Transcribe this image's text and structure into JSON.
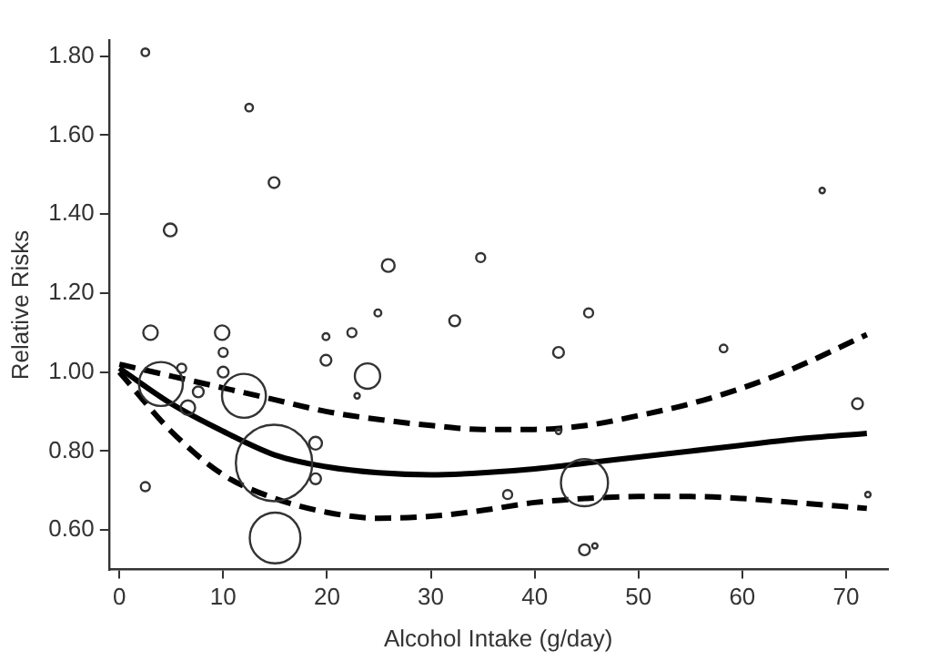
{
  "chart_data": {
    "type": "bubble",
    "xlabel": "Alcohol Intake (g/day)",
    "ylabel": "Relative Risks",
    "xlim": [
      -1,
      74
    ],
    "ylim": [
      0.5,
      1.84
    ],
    "xticks": [
      0,
      10,
      20,
      30,
      40,
      50,
      60,
      70
    ],
    "yticks": [
      {
        "value": 0.6,
        "label": "0.60"
      },
      {
        "value": 0.8,
        "label": "0.80"
      },
      {
        "value": 1.0,
        "label": "1.00"
      },
      {
        "value": 1.2,
        "label": "1.20"
      },
      {
        "value": 1.4,
        "label": "1.40"
      },
      {
        "value": 1.6,
        "label": "1.60"
      },
      {
        "value": 1.8,
        "label": "1.80"
      }
    ],
    "grid": false,
    "legend": false,
    "series": [
      {
        "color": "#333333",
        "x": [
          2.5,
          12.5,
          14.9,
          4.9,
          24.9,
          25.9,
          32.3,
          67.7,
          34.8,
          45.2,
          3,
          9.9,
          10,
          10,
          19.9,
          22.4,
          19.9,
          23.9,
          22.9,
          4,
          6,
          6.6,
          7.6,
          12,
          14.9,
          18.9,
          18.9,
          2.5,
          15,
          42.3,
          58.2,
          71.1,
          37.4,
          44.8,
          72.1,
          44.8,
          45.8,
          42.3
        ],
        "values": [
          1.81,
          1.67,
          1.48,
          1.36,
          1.15,
          1.27,
          1.13,
          1.46,
          1.29,
          1.15,
          1.1,
          1.1,
          1.05,
          1.0,
          1.09,
          1.1,
          1.03,
          0.99,
          0.94,
          0.97,
          1.01,
          0.91,
          0.95,
          0.94,
          0.77,
          0.82,
          0.73,
          0.71,
          0.58,
          1.05,
          1.06,
          0.92,
          0.69,
          0.72,
          0.69,
          0.55,
          0.56,
          0.85
        ],
        "sizes": [
          0.01,
          0.01,
          0.02,
          0.028,
          0.008,
          0.028,
          0.02,
          0.005,
          0.014,
          0.014,
          0.036,
          0.036,
          0.014,
          0.02,
          0.008,
          0.014,
          0.02,
          0.11,
          0.005,
          0.33,
          0.014,
          0.036,
          0.02,
          0.33,
          1,
          0.028,
          0.02,
          0.014,
          0.44,
          0.02,
          0.01,
          0.02,
          0.014,
          0.38,
          0.005,
          0.02,
          0.005,
          0.005
        ]
      },
      {
        "type": "line",
        "color": "#000000",
        "line_style": "solid",
        "x": [
          0,
          5,
          10,
          15,
          20,
          25,
          30,
          35,
          40,
          45,
          50,
          55,
          60,
          65,
          72
        ],
        "values": [
          1.01,
          0.92,
          0.85,
          0.79,
          0.76,
          0.745,
          0.74,
          0.745,
          0.755,
          0.77,
          0.785,
          0.8,
          0.815,
          0.83,
          0.845
        ]
      },
      {
        "type": "line",
        "color": "#000000",
        "line_style": "dashed",
        "x": [
          0,
          5,
          10,
          15,
          20,
          25,
          30,
          35,
          40,
          45,
          50,
          55,
          60,
          65,
          72
        ],
        "values": [
          1.02,
          0.99,
          0.96,
          0.93,
          0.9,
          0.88,
          0.865,
          0.855,
          0.855,
          0.865,
          0.89,
          0.92,
          0.96,
          1.01,
          1.095
        ]
      },
      {
        "type": "line",
        "color": "#000000",
        "line_style": "dashed",
        "x": [
          0,
          5,
          10,
          15,
          20,
          25,
          30,
          35,
          40,
          45,
          50,
          55,
          60,
          65,
          72
        ],
        "values": [
          1.0,
          0.85,
          0.74,
          0.68,
          0.645,
          0.63,
          0.635,
          0.65,
          0.67,
          0.68,
          0.685,
          0.685,
          0.68,
          0.67,
          0.655
        ]
      }
    ]
  }
}
